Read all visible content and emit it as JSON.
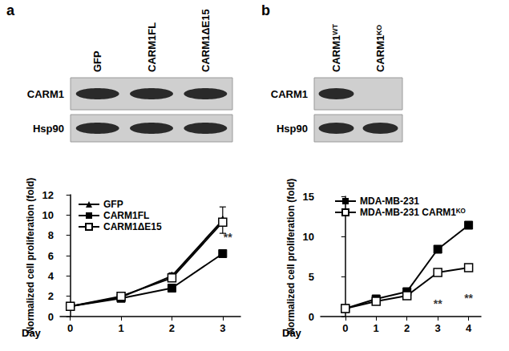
{
  "chart_data": [
    {
      "type": "line",
      "panel": "a",
      "blot": {
        "lanes": [
          "GFP",
          "CARM1FL",
          "CARM1ΔE15"
        ],
        "rows": [
          {
            "label": "CARM1",
            "present": [
              true,
              true,
              true
            ]
          },
          {
            "label": "Hsp90",
            "present": [
              true,
              true,
              true
            ]
          }
        ]
      },
      "x_label": "Day",
      "y_label": "Normalized cell proliferation (fold)",
      "xlim": [
        -0.2,
        3.35
      ],
      "xticks": [
        0,
        1,
        2,
        3
      ],
      "ylim": [
        0,
        12
      ],
      "yticks": [
        0,
        2,
        4,
        6,
        8,
        10,
        12
      ],
      "grid": false,
      "legend": "upper left",
      "series": [
        {
          "name": "GFP",
          "color": "#000000",
          "marker": "triangle",
          "line_style": "solid",
          "x": [
            0,
            1,
            2,
            3
          ],
          "values": [
            1,
            1.9,
            4.0,
            9.5
          ],
          "errors": [
            0,
            0.2,
            0.3,
            1.3
          ]
        },
        {
          "name": "CARM1FL",
          "color": "#000000",
          "marker": "square",
          "line_style": "solid",
          "x": [
            0,
            1,
            2,
            3
          ],
          "values": [
            1,
            1.8,
            2.8,
            6.2
          ]
        },
        {
          "name": "CARM1ΔE15",
          "color": "#000000",
          "marker": "square-open",
          "line_style": "solid",
          "x": [
            0,
            1,
            2,
            3
          ],
          "values": [
            1,
            2.0,
            3.8,
            9.3
          ]
        }
      ],
      "annotations": [
        {
          "text": "**",
          "x": 3.1,
          "y": 7.8
        }
      ]
    },
    {
      "type": "line",
      "panel": "b",
      "blot": {
        "lanes": [
          "CARM1ᵂᵀ",
          "CARM1ᴷᴼ"
        ],
        "rows": [
          {
            "label": "CARM1",
            "present": [
              true,
              false
            ]
          },
          {
            "label": "Hsp90",
            "present": [
              true,
              true
            ]
          }
        ]
      },
      "x_label": "Day",
      "y_label": "Normalized cell proliferation (fold)",
      "xlim": [
        -0.8,
        4.4
      ],
      "xticks": [
        0,
        1,
        2,
        3,
        4
      ],
      "ylim": [
        0,
        15
      ],
      "yticks": [
        0,
        5,
        10,
        15
      ],
      "grid": false,
      "legend": "upper left",
      "series": [
        {
          "name": "MDA-MB-231",
          "color": "#000000",
          "marker": "square",
          "line_style": "solid",
          "x": [
            0,
            1,
            2,
            3,
            4
          ],
          "values": [
            1,
            2.2,
            3.1,
            8.4,
            11.4
          ]
        },
        {
          "name": "MDA-MB-231 CARM1ᴷᴼ",
          "color": "#000000",
          "marker": "square-open",
          "line_style": "solid",
          "x": [
            0,
            1,
            2,
            3,
            4
          ],
          "values": [
            1,
            1.9,
            2.6,
            5.5,
            6.1
          ]
        }
      ],
      "annotations": [
        {
          "text": "**",
          "x": 3,
          "y": 1.6
        },
        {
          "text": "**",
          "x": 4,
          "y": 2.3
        }
      ]
    }
  ]
}
